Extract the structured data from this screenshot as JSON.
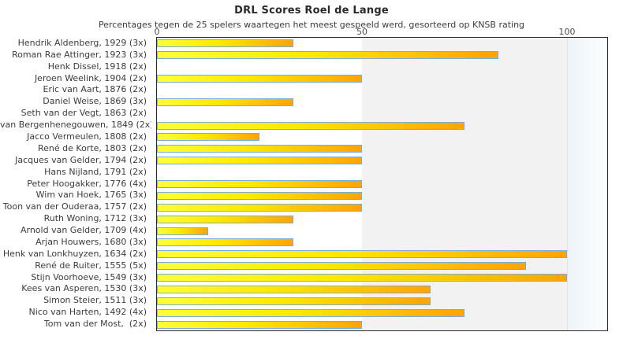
{
  "title": "DRL Scores Roel de Lange",
  "subtitle": "Percentages tegen de 25 spelers waartegen het meest gespeeld werd, gesorteerd op KNSB rating",
  "colors": {
    "bar_from": "#ffff37",
    "bar_mid": "#ffe800",
    "bar_to": "#ffa405",
    "bar_border": "#79add7",
    "band_gray": "#f2f2f2",
    "band_blue_from": "#edf4fa",
    "band_blue_to": "#fcfeff",
    "gridline_100": "#dde6ee",
    "plot_border": "#2b2b2b",
    "title_text": "#2a2a2a",
    "label_text": "#3c3c3c",
    "tick_text": "#4d4d4d"
  },
  "chart_data": {
    "type": "bar",
    "orientation": "horizontal",
    "title": "DRL Scores Roel de Lange",
    "subtitle": "Percentages tegen de 25 spelers waartegen het meest gespeeld werd, gesorteerd op KNSB rating",
    "xlim": [
      0,
      100
    ],
    "x_ticks": [
      0,
      50,
      100
    ],
    "grid": "band from 50 to 100 shaded gray, pale blue band beyond 100",
    "legend": "none",
    "categories": [
      "Hendrik Aldenberg, 1929 (3x)",
      "Roman Rae Attinger, 1923 (3x)",
      "Henk Dissel, 1918 (2x)",
      "Jeroen Weelink, 1904 (2x)",
      "Eric van Aart, 1876 (2x)",
      "Daniel Weise, 1869 (3x)",
      "Seth van der Vegt, 1863 (2x)",
      "van Bergenhenegouwen, 1849 (2x)",
      "Jacco Vermeulen, 1808 (2x)",
      "René de Korte, 1803 (2x)",
      "Jacques van Gelder, 1794 (2x)",
      "Hans Nijland, 1791 (2x)",
      "Peter Hoogakker, 1776 (4x)",
      "Wim van Hoek, 1765 (3x)",
      "Toon van der Ouderaa, 1757 (2x)",
      "Ruth Woning, 1712 (3x)",
      "Arnold van Gelder, 1709 (4x)",
      "Arjan Houwers, 1680 (3x)",
      "Henk van Lonkhuyzen, 1634 (2x)",
      "René de Ruiter, 1555 (5x)",
      "Stijn Voorhoeve, 1549 (3x)",
      "Kees van Asperen, 1530 (3x)",
      "Simon Steier, 1511 (3x)",
      "Nico van Harten, 1492 (4x)",
      "Tom van der Most,  (2x)"
    ],
    "values": [
      33.3,
      83.3,
      0,
      50,
      0,
      33.3,
      0,
      75,
      25,
      50,
      50,
      0,
      50,
      50,
      50,
      33.3,
      12.5,
      33.3,
      100,
      90,
      100,
      66.7,
      66.7,
      75,
      50
    ]
  }
}
